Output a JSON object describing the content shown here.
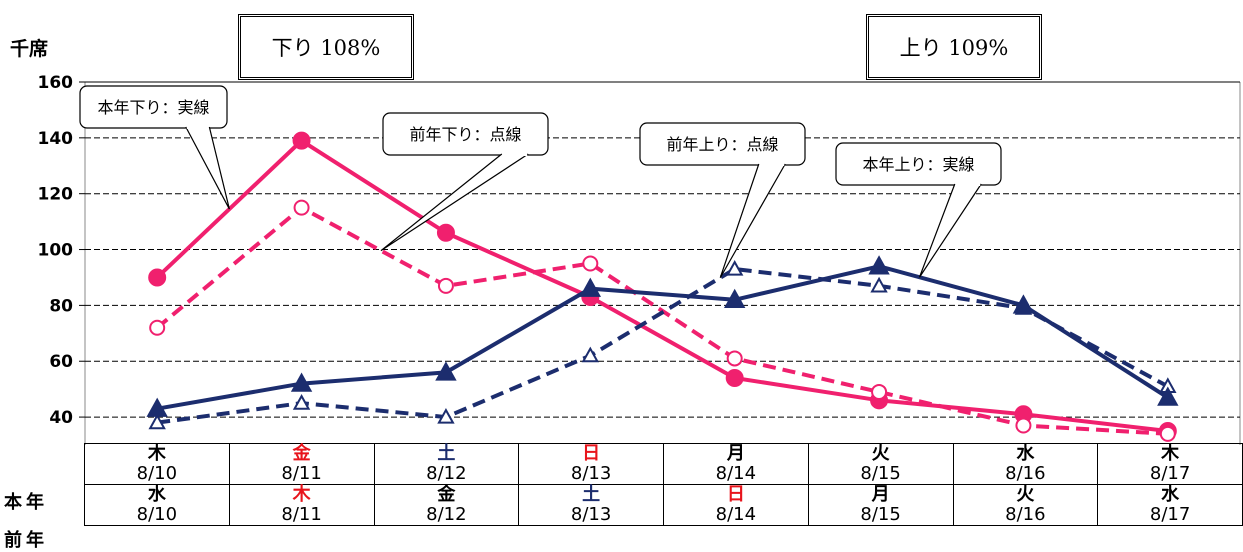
{
  "chart_data": {
    "type": "line",
    "unit": "千席",
    "ylim": [
      30,
      160
    ],
    "yticks": [
      40,
      60,
      80,
      100,
      120,
      140,
      160
    ],
    "grid": true,
    "categories": [
      "8/10",
      "8/11",
      "8/12",
      "8/13",
      "8/14",
      "8/15",
      "8/16",
      "8/17"
    ],
    "series": [
      {
        "name": "本年下り：実線",
        "color": "#f0206e",
        "dashed": false,
        "marker": "circle-filled",
        "values": [
          90,
          139,
          106,
          83,
          54,
          46,
          41,
          35
        ]
      },
      {
        "name": "前年下り：点線",
        "color": "#f0206e",
        "dashed": true,
        "marker": "circle-open",
        "values": [
          72,
          115,
          87,
          95,
          61,
          49,
          37,
          34
        ]
      },
      {
        "name": "前年上り：点線",
        "color": "#1c2d6e",
        "dashed": true,
        "marker": "triangle-open",
        "values": [
          38,
          45,
          40,
          62,
          93,
          87,
          79,
          51
        ]
      },
      {
        "name": "本年上り：実線",
        "color": "#1c2d6e",
        "dashed": false,
        "marker": "triangle-filled",
        "values": [
          43,
          52,
          56,
          86,
          82,
          94,
          80,
          47
        ]
      }
    ],
    "boxes": {
      "down": "下り 108%",
      "up": "上り 109%"
    },
    "callouts": [
      {
        "text": "本年下り：実線",
        "series": 0
      },
      {
        "text": "前年下り：点線",
        "series": 1
      },
      {
        "text": "前年上り：点線",
        "series": 2
      },
      {
        "text": "本年上り：実線",
        "series": 3
      }
    ]
  },
  "table": {
    "row_labels": {
      "current": "本年",
      "previous": "前年"
    },
    "current": [
      {
        "weekday": "木",
        "date": "8/10",
        "color": "#000000"
      },
      {
        "weekday": "金",
        "date": "8/11",
        "color": "#e8141c"
      },
      {
        "weekday": "土",
        "date": "8/12",
        "color": "#1c2d6e"
      },
      {
        "weekday": "日",
        "date": "8/13",
        "color": "#e8141c"
      },
      {
        "weekday": "月",
        "date": "8/14",
        "color": "#000000"
      },
      {
        "weekday": "火",
        "date": "8/15",
        "color": "#000000"
      },
      {
        "weekday": "水",
        "date": "8/16",
        "color": "#000000"
      },
      {
        "weekday": "木",
        "date": "8/17",
        "color": "#000000"
      }
    ],
    "previous": [
      {
        "weekday": "水",
        "date": "8/10",
        "color": "#000000"
      },
      {
        "weekday": "木",
        "date": "8/11",
        "color": "#e8141c"
      },
      {
        "weekday": "金",
        "date": "8/12",
        "color": "#000000"
      },
      {
        "weekday": "土",
        "date": "8/13",
        "color": "#1c2d6e"
      },
      {
        "weekday": "日",
        "date": "8/14",
        "color": "#e8141c"
      },
      {
        "weekday": "月",
        "date": "8/15",
        "color": "#000000"
      },
      {
        "weekday": "火",
        "date": "8/16",
        "color": "#000000"
      },
      {
        "weekday": "水",
        "date": "8/17",
        "color": "#000000"
      }
    ]
  }
}
